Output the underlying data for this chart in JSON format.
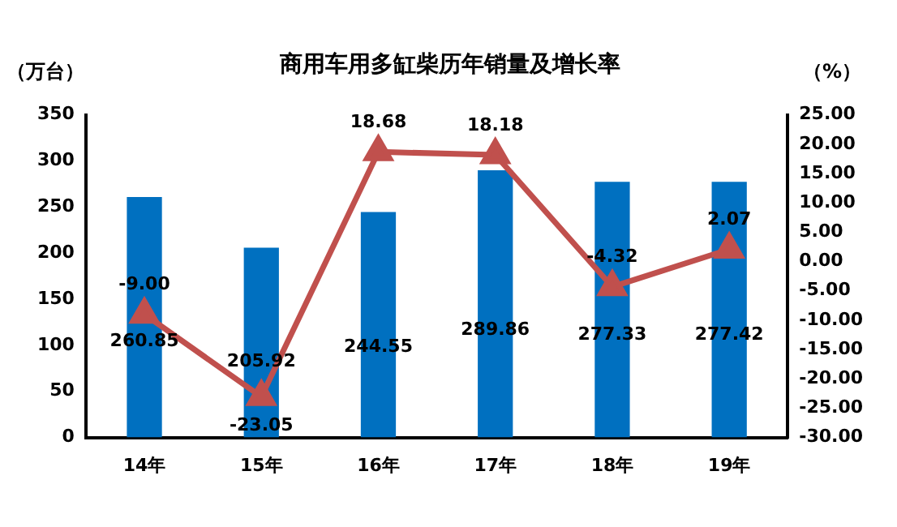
{
  "chart_data": {
    "type": "bar",
    "title": "商用车用多缸柴历年销量及增长率",
    "ylabel": "（万台）",
    "y2label": "（%）",
    "categories": [
      "14年",
      "15年",
      "16年",
      "17年",
      "18年",
      "19年"
    ],
    "series": [
      {
        "color": "#0070c0",
        "values": [
          260.85,
          205.92,
          244.55,
          289.86,
          277.33,
          277.42
        ]
      },
      {
        "type": "line",
        "axis": "y2",
        "color": "#c0504d",
        "marker": "triangle",
        "values": [
          -9.0,
          -23.05,
          18.68,
          18.18,
          -4.32,
          2.07
        ],
        "value_labels": [
          "-9.00",
          "-23.05",
          "18.68",
          "18.18",
          "-4.32",
          "2.07"
        ]
      }
    ],
    "ylim": [
      0,
      350
    ],
    "yticks": [
      0,
      50,
      100,
      150,
      200,
      250,
      300,
      350
    ],
    "y2lim": [
      -30,
      25
    ],
    "y2ticks": [
      {
        "value": -30,
        "label": "-30.00"
      },
      {
        "value": -25,
        "label": "-25.00"
      },
      {
        "value": -20,
        "label": "-20.00"
      },
      {
        "value": -15,
        "label": "-15.00"
      },
      {
        "value": -10,
        "label": "-10.00"
      },
      {
        "value": -5,
        "label": "-5.00"
      },
      {
        "value": 0,
        "label": "0.00"
      },
      {
        "value": 5,
        "label": "5.00"
      },
      {
        "value": 10,
        "label": "10.00"
      },
      {
        "value": 15,
        "label": "15.00"
      },
      {
        "value": 20,
        "label": "20.00"
      },
      {
        "value": 25,
        "label": "25.00"
      }
    ],
    "data_labels": true,
    "grid": false,
    "legend": false
  }
}
